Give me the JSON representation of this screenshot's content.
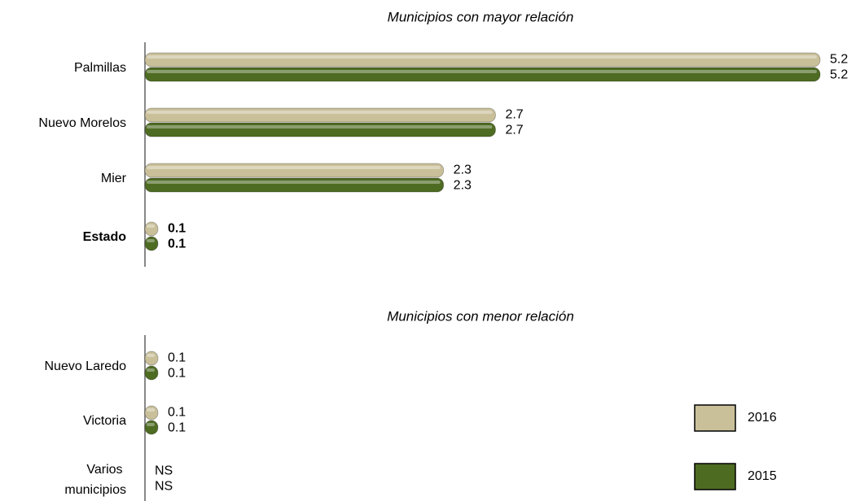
{
  "chart_data": [
    {
      "type": "hbar",
      "title": "Municipios con mayor relación",
      "categories": [
        "Palmillas",
        "Nuevo Morelos",
        "Mier",
        "Estado"
      ],
      "series": [
        {
          "name": "2016",
          "color": "#c9c09a",
          "values": [
            5.2,
            2.7,
            2.3,
            0.1
          ]
        },
        {
          "name": "2015",
          "color": "#4e6b22",
          "values": [
            5.2,
            2.7,
            2.3,
            0.1
          ]
        }
      ],
      "xlim": [
        0,
        5.25
      ]
    },
    {
      "type": "hbar",
      "title": "Municipios con menor relación",
      "categories": [
        "Nuevo Laredo",
        "Victoria",
        "Varios municipios"
      ],
      "series": [
        {
          "name": "2016",
          "color": "#c9c09a",
          "values": [
            0.1,
            0.1,
            null
          ],
          "value_labels": [
            "0.1",
            "0.1",
            "NS"
          ]
        },
        {
          "name": "2015",
          "color": "#4e6b22",
          "values": [
            0.1,
            0.1,
            null
          ],
          "value_labels": [
            "0.1",
            "0.1",
            "NS"
          ]
        }
      ],
      "xlim": [
        0,
        5.25
      ],
      "legend": "lower right"
    }
  ]
}
